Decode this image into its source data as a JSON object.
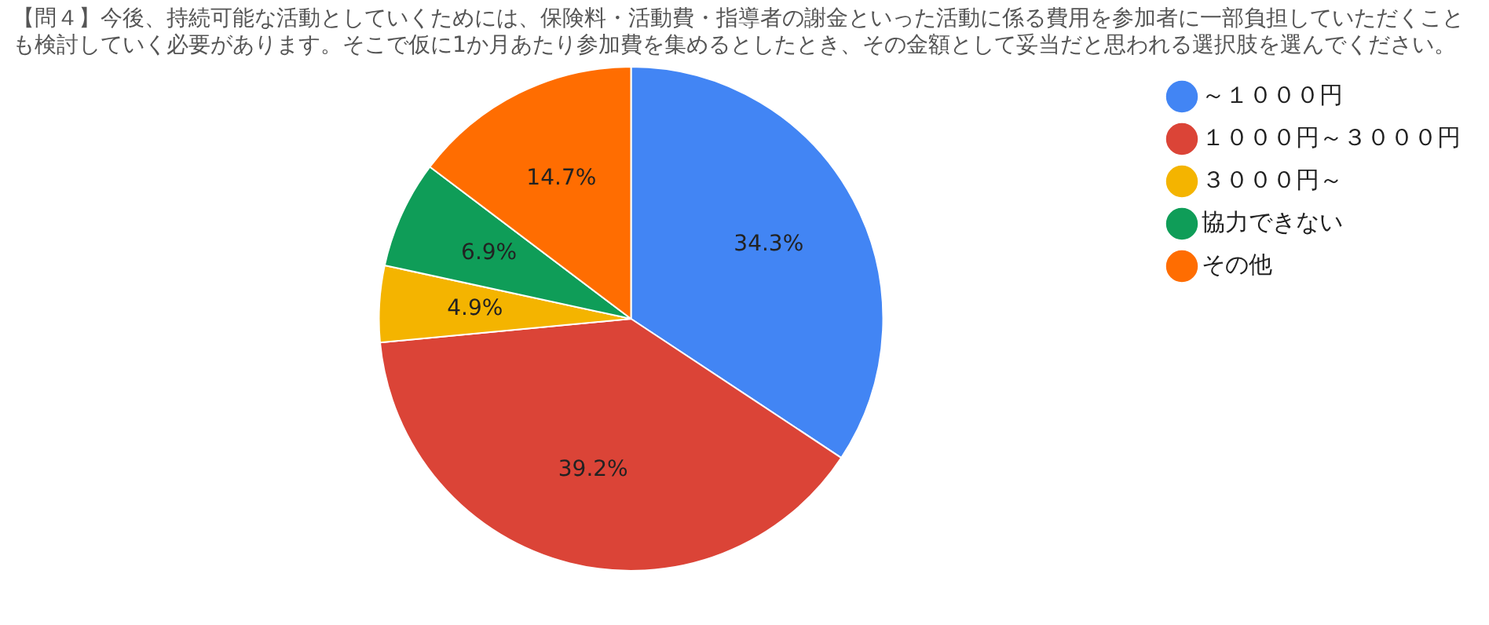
{
  "chart_data": {
    "type": "pie",
    "title": "【問４】今後、持続可能な活動としていくためには、保険料・活動費・指導者の謝金といった活動に係る費用を参加者に一部負担していただくことも検討していく必要があります。そこで仮に1か月あたり参加費を集めるとしたとき、その金額として妥当だと思われる選択肢を選んでください。",
    "categories": [
      "～１０００円",
      "１０００円～３０００円",
      "３０００円～",
      "協力できない",
      "その他"
    ],
    "values": [
      34.3,
      39.2,
      4.9,
      6.9,
      14.7
    ],
    "colors": [
      "#4285f4",
      "#db4437",
      "#f4b400",
      "#0f9d58",
      "#ff6d01"
    ],
    "value_labels": [
      "34.3%",
      "39.2%",
      "4.9%",
      "6.9%",
      "14.7%"
    ],
    "legend": "right"
  }
}
